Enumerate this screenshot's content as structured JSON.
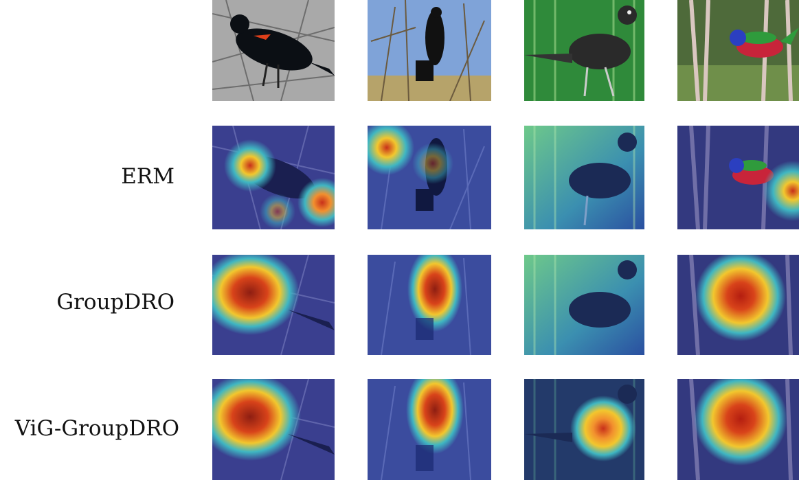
{
  "rows": [
    {
      "label": ""
    },
    {
      "label": "ERM"
    },
    {
      "label": "GroupDRO"
    },
    {
      "label": "ViG-GroupDRO"
    }
  ],
  "columns": [
    {
      "scene": "red-winged-blackbird-on-snowy-branches"
    },
    {
      "scene": "black-bird-among-bare-trees-blue-sky"
    },
    {
      "scene": "grackle-in-green-bamboo-forest"
    },
    {
      "scene": "painted-bunting-in-woodland"
    }
  ],
  "colors": {
    "heat_high": "#b41e10",
    "heat_mid": "#f2c72e",
    "heat_low": "#2a6cd8",
    "overlay_cool": "#2a2f8a"
  }
}
